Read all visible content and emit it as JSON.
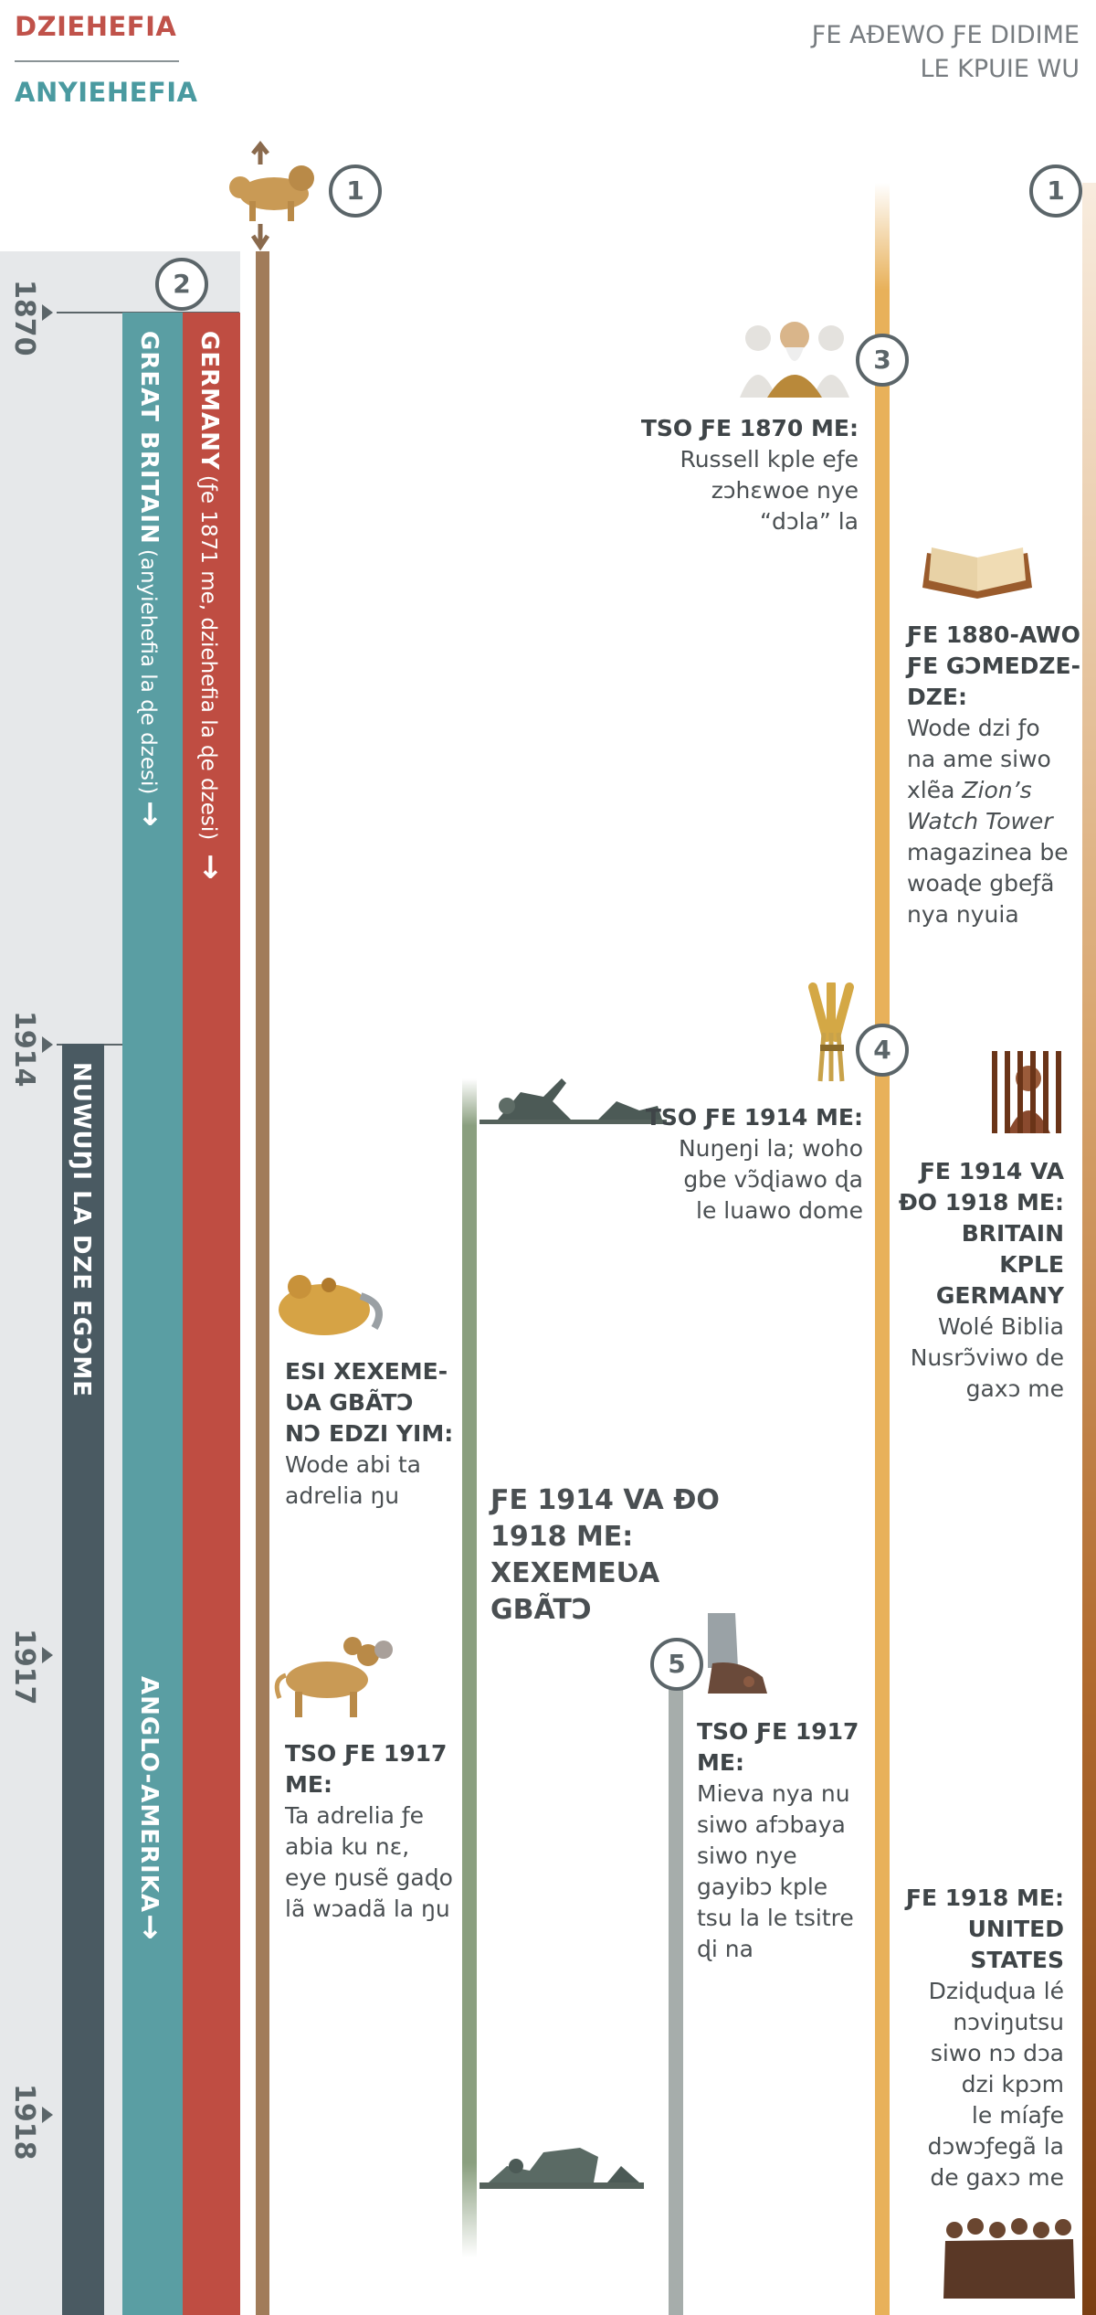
{
  "legend": {
    "east_label": "DZIEHEFIA",
    "west_label": "ANYIEHEFIA"
  },
  "title": {
    "line1": "ƑE AÐEWO ƑE DIDIME",
    "line2": "LE KPUIE WU"
  },
  "years": [
    "1870",
    "1914",
    "1917",
    "1918"
  ],
  "bars": {
    "germany": {
      "name": "GERMANY",
      "note": "(ƒe 1871 me, dziehefia la ɖe dzesi)",
      "color": "#bf4d42"
    },
    "britain": {
      "name": "GREAT BRITAIN",
      "note": "(anyiehefia la ɖe dzesi)",
      "color": "#5a9ea3"
    },
    "anglo": {
      "name": "ANGLO-AMERIKA",
      "color": "#5a9ea3"
    },
    "nuwuyi": {
      "name": "NUWUŊI LA DZE EGƆME",
      "color": "#4a5a62"
    }
  },
  "arrow_glyph": "↓",
  "markers": [
    "1",
    "1",
    "2",
    "3",
    "4",
    "5"
  ],
  "events": {
    "e1870": {
      "heading": "TSO ƑE 1870 ME:",
      "body_lines": [
        "Russell kple eƒe",
        "zɔhɛwoe nye",
        "“dɔla” la"
      ]
    },
    "e1880": {
      "heading_lines": [
        "ƑE 1880-AWO",
        "ƑE GƆMEDZE-",
        "DZE:"
      ],
      "body_lines": [
        "Wode dzi ƒo",
        "na ame siwo",
        "xlẽa",
        "Watch Tower",
        "magazinea be",
        "woaɖe gbeƒã",
        "nya nyuia"
      ],
      "italic_fragment": "Zion’s"
    },
    "e1914": {
      "heading": "TSO ƑE 1914 ME:",
      "body_lines": [
        "Nuŋeŋi la; woho",
        "gbe vɔ̃ɖiawo ɖa",
        "le luawo dome"
      ]
    },
    "e1914_1918": {
      "heading_lines": [
        "ƑE 1914 VA",
        "ÐO 1918 ME:",
        "BRITAIN KPLE",
        "GERMANY"
      ],
      "body_lines": [
        "Wolé Biblia",
        "Nusrɔ̃viwo de",
        "gaxɔ me"
      ]
    },
    "beast": {
      "heading_lines": [
        "ESI XEXEME-",
        "ƲA GBÃTƆ",
        "NƆ EDZI YIM:"
      ],
      "body_lines": [
        "Wode abi ta",
        "adrelia ŋu"
      ]
    },
    "war": {
      "heading_lines": [
        "ƑE 1914 VA ÐO",
        "1918 ME:",
        "XEXEMEƲA",
        "GBÃTƆ"
      ]
    },
    "e1917_beast": {
      "heading_lines": [
        "TSO ƑE 1917",
        "ME:"
      ],
      "body_lines": [
        "Ta adrelia ƒe",
        "abia ku nɛ,",
        "eye ŋusẽ gaɖo",
        "lã wɔadã la ŋu"
      ]
    },
    "e1917_feet": {
      "heading_lines": [
        "TSO ƑE 1917",
        "ME:"
      ],
      "body_lines": [
        "Mieva nya nu",
        "siwo afɔbaya",
        "siwo nye",
        "gayibɔ kple",
        "tsu la le tsitre",
        "ɖi na"
      ]
    },
    "e1918": {
      "heading_lines": [
        "ƑE 1918 ME:",
        "UNITED",
        "STATES"
      ],
      "body_lines": [
        "Dziɖuɖua lé",
        "nɔviŋutsu",
        "siwo nɔ dɔa",
        "dzi kpɔm",
        "le míaƒe",
        "dɔwɔƒegã la",
        "de gaxɔ me"
      ]
    }
  }
}
